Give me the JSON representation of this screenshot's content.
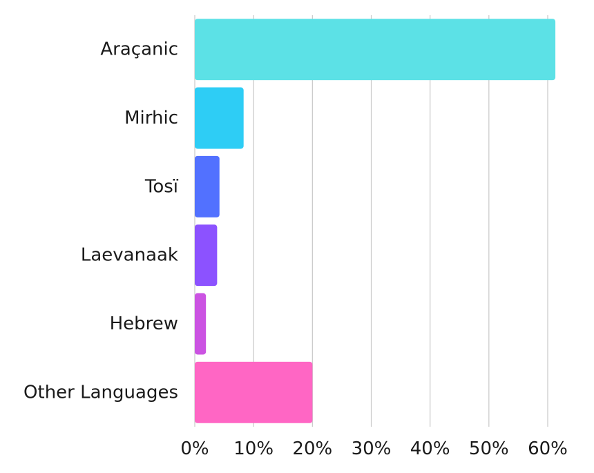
{
  "chart_data": {
    "type": "bar",
    "orientation": "horizontal",
    "categories": [
      "Araçanic",
      "Mirhic",
      "Tosï",
      "Laevanaak",
      "Hebrew",
      "Other Languages"
    ],
    "values": [
      61.3,
      8.3,
      4.2,
      3.8,
      1.9,
      20.0
    ],
    "colors": [
      "#5ce1e6",
      "#2ecdf5",
      "#5271ff",
      "#8c52ff",
      "#cb53e2",
      "#ff66c4"
    ],
    "xlim": [
      0,
      60
    ],
    "x_ticks": [
      "0%",
      "10%",
      "20%",
      "30%",
      "40%",
      "50%",
      "60%"
    ],
    "grid": "vertical",
    "title": "",
    "xlabel": "",
    "ylabel": ""
  }
}
